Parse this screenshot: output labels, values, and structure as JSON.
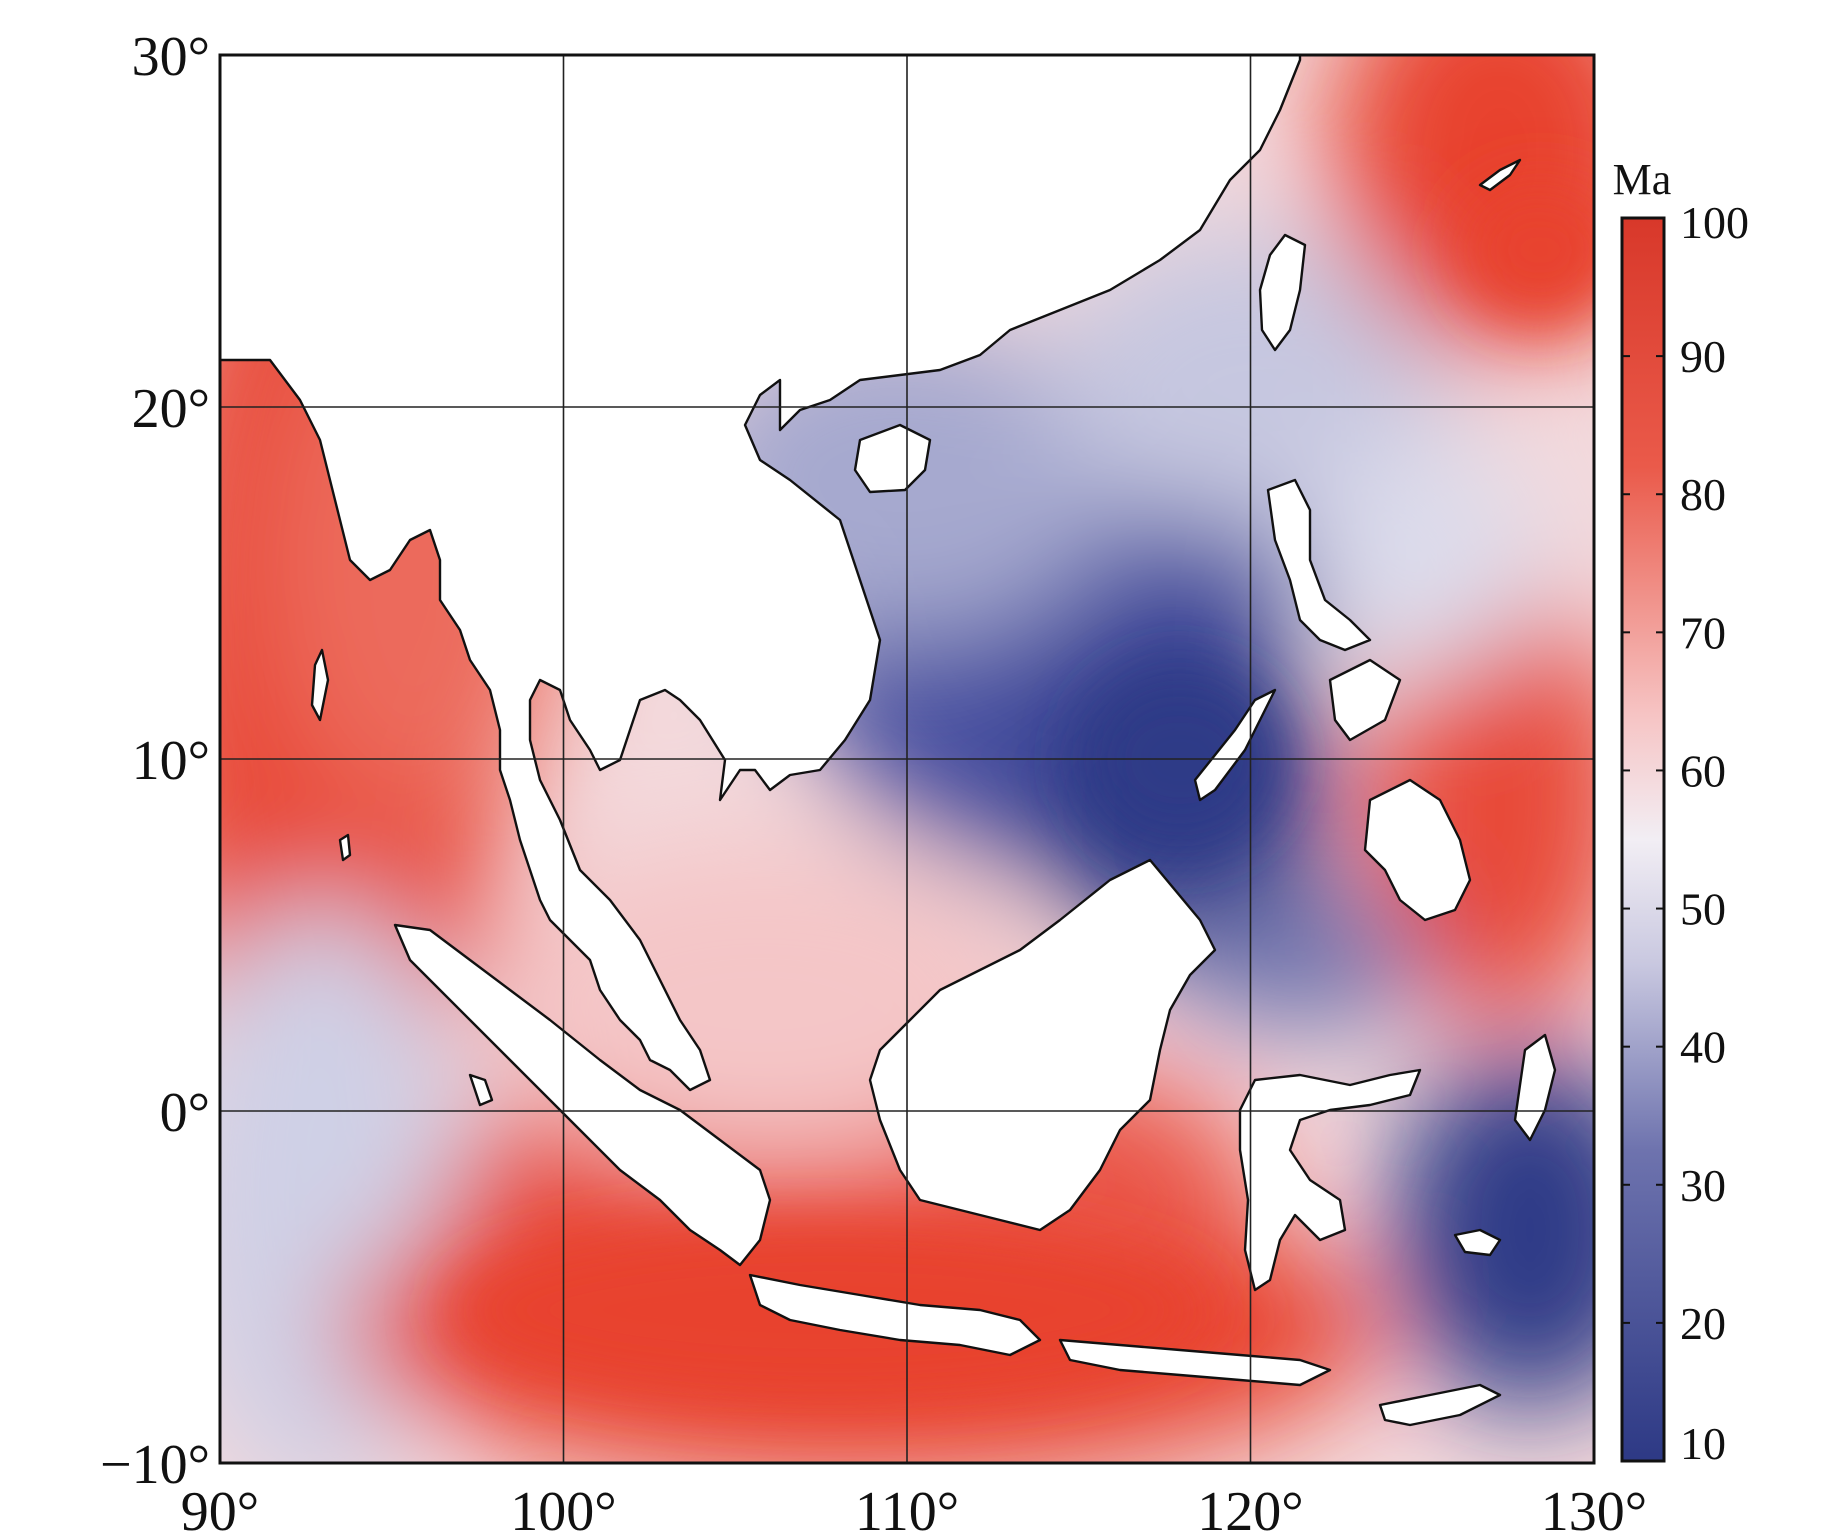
{
  "map": {
    "lon_range": [
      90,
      130
    ],
    "lat_range": [
      -10,
      30
    ],
    "grid_lons": [
      100,
      110,
      120
    ],
    "grid_lats": [
      0,
      10,
      20
    ],
    "lon_ticks": [
      {
        "lon": 90,
        "label": "90°"
      },
      {
        "lon": 100,
        "label": "100°"
      },
      {
        "lon": 110,
        "label": "110°"
      },
      {
        "lon": 120,
        "label": "120°"
      },
      {
        "lon": 130,
        "label": "130°"
      }
    ],
    "lat_ticks": [
      {
        "lat": 30,
        "label": "30°"
      },
      {
        "lat": 20,
        "label": "20°"
      },
      {
        "lat": 10,
        "label": "10°"
      },
      {
        "lat": 0,
        "label": "0°"
      },
      {
        "lat": -10,
        "label": "−10°"
      }
    ],
    "land_fill": "#ffffff",
    "coastline_color": "#111111"
  },
  "colorbar": {
    "title": "Ma",
    "min": 10,
    "max": 100,
    "tick_labels": [
      "100",
      "90",
      "80",
      "70",
      "60",
      "50",
      "40",
      "30",
      "20",
      "10"
    ],
    "colors": {
      "old": "#e8432f",
      "mid": "#f2f2f7",
      "young": "#2e3a87"
    }
  }
}
